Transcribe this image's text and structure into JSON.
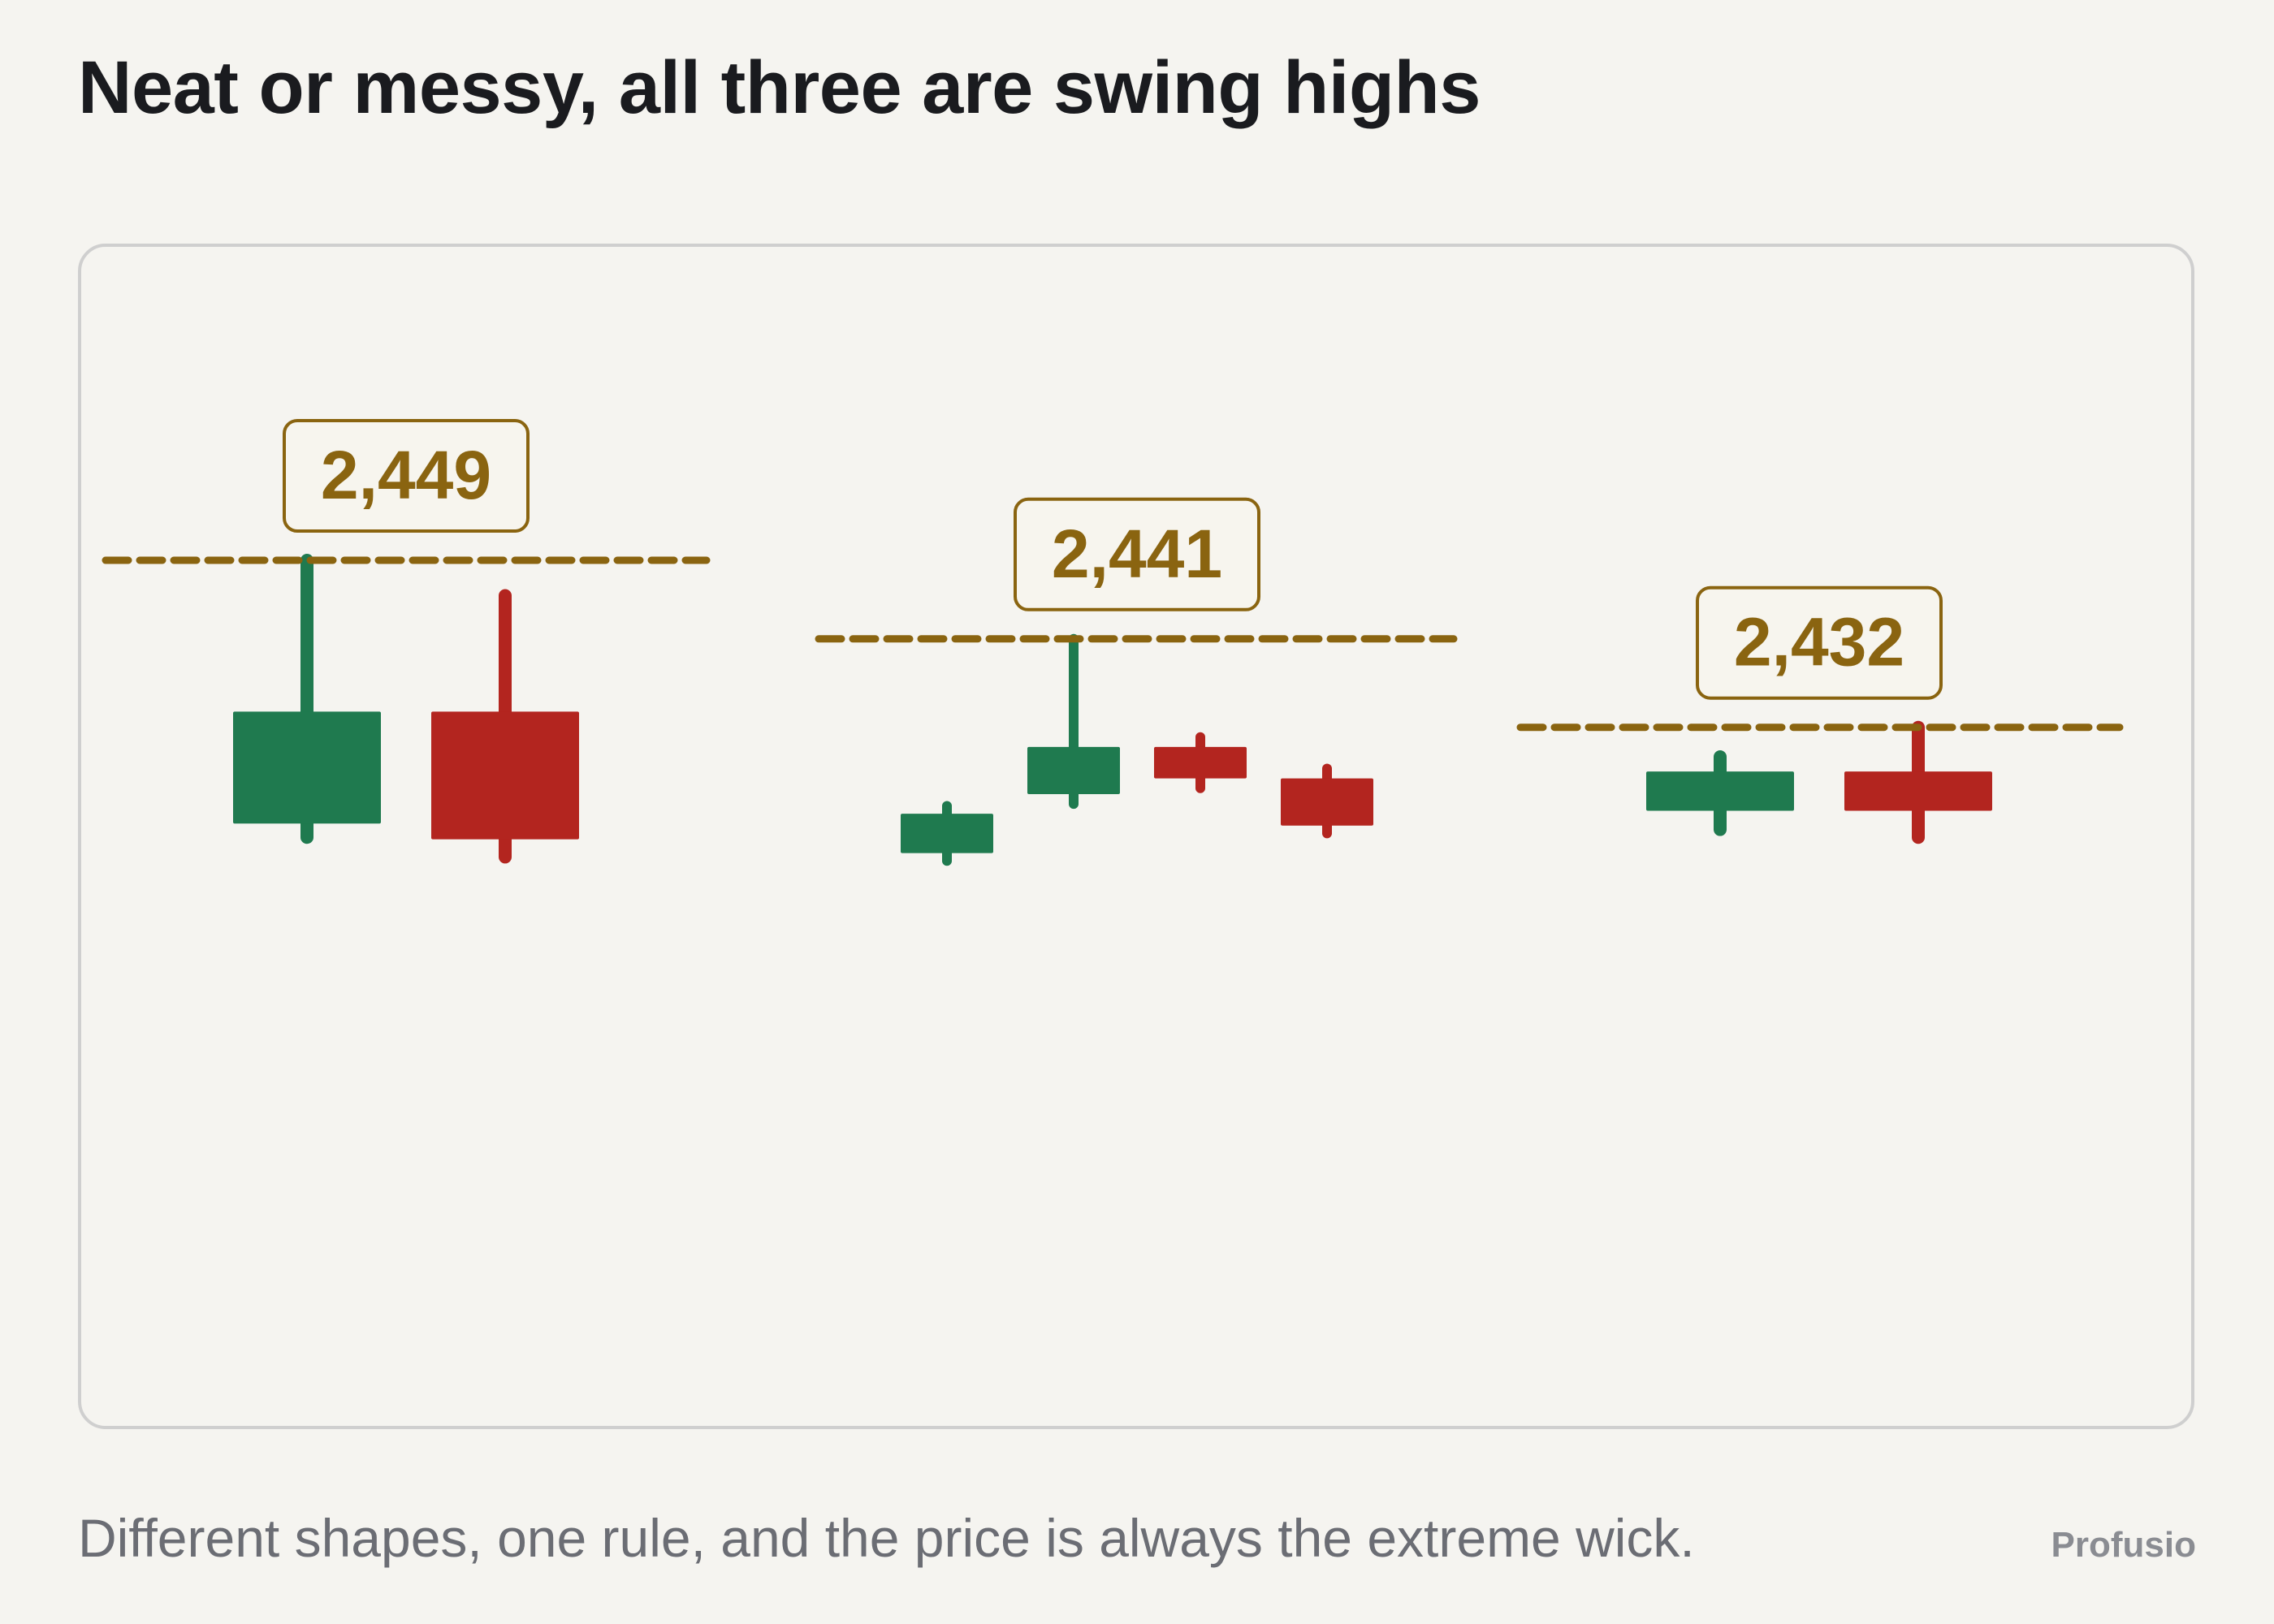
{
  "title": "Neat or messy, all three are swing highs",
  "caption": "Different shapes, one rule, and the price is always the extreme wick.",
  "brand": "Profusio",
  "colors": {
    "up": "#1f7a4f",
    "down": "#b3251f",
    "level": "#8a6410",
    "label_fill": "#f7f5ee"
  },
  "chart_data": {
    "type": "candlestick",
    "groups": [
      {
        "name": "",
        "swing_high": 2449,
        "label": "2,449",
        "candles": [
          {
            "direction": "up",
            "open": 2422.2,
            "close": 2433.6,
            "high": 2449.0,
            "low": 2420.8
          },
          {
            "direction": "down",
            "open": 2433.6,
            "close": 2420.6,
            "high": 2445.4,
            "low": 2418.8
          }
        ]
      },
      {
        "name": "",
        "swing_high": 2441,
        "label": "2,441",
        "candles": [
          {
            "direction": "up",
            "open": 2419.2,
            "close": 2423.2,
            "high": 2424.0,
            "low": 2418.4
          },
          {
            "direction": "up",
            "open": 2425.2,
            "close": 2430.0,
            "high": 2441.0,
            "low": 2424.2
          },
          {
            "direction": "down",
            "open": 2430.0,
            "close": 2426.8,
            "high": 2431.0,
            "low": 2425.8
          },
          {
            "direction": "down",
            "open": 2426.8,
            "close": 2422.0,
            "high": 2427.8,
            "low": 2421.2
          }
        ]
      },
      {
        "name": "",
        "swing_high": 2432,
        "label": "2,432",
        "candles": [
          {
            "direction": "up",
            "open": 2423.5,
            "close": 2427.5,
            "high": 2429.0,
            "low": 2421.6
          },
          {
            "direction": "down",
            "open": 2427.5,
            "close": 2423.5,
            "high": 2432.0,
            "low": 2420.8
          }
        ]
      }
    ]
  }
}
